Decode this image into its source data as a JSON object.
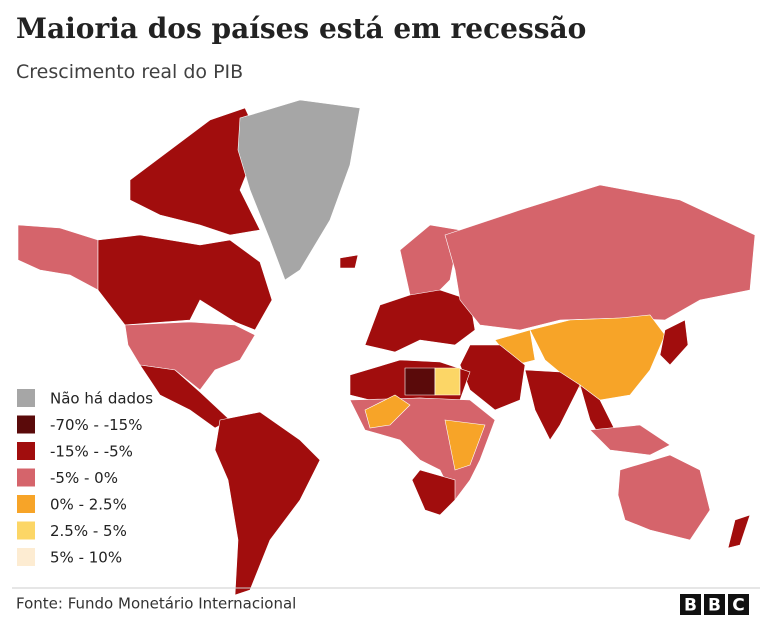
{
  "header": {
    "title": "Maioria dos países está em recessão",
    "subtitle": "Crescimento real do PIB"
  },
  "legend": [
    {
      "label": "Não há dados",
      "color": "#a6a6a6"
    },
    {
      "label": "-70% - -15%",
      "color": "#5a0a0a"
    },
    {
      "label": "-15% - -5%",
      "color": "#a10d0d"
    },
    {
      "label": "-5% - 0%",
      "color": "#d5646b"
    },
    {
      "label": "0% - 2.5%",
      "color": "#f7a428"
    },
    {
      "label": "2.5% - 5%",
      "color": "#fcd666"
    },
    {
      "label": "5% - 10%",
      "color": "#fdecd2"
    }
  ],
  "footer": {
    "source": "Fonte: Fundo Monetário Internacional",
    "logo": [
      "B",
      "B",
      "C"
    ]
  }
}
